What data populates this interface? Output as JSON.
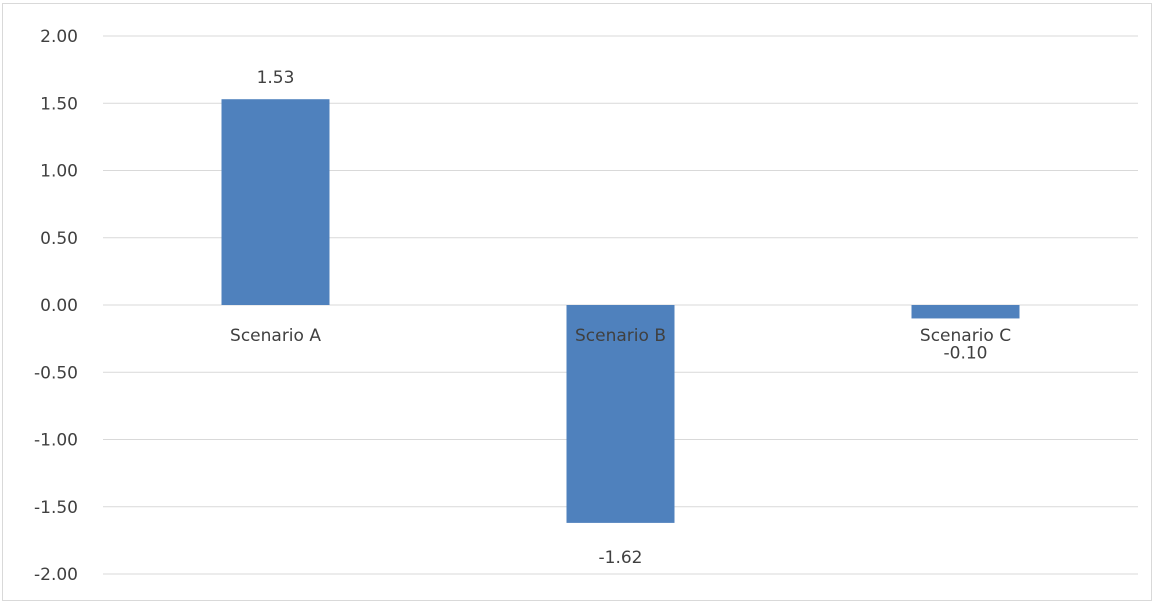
{
  "chart_data": {
    "type": "bar",
    "title": "",
    "xlabel": "",
    "ylabel": "",
    "categories": [
      "Scenario A",
      "Scenario B",
      "Scenario C"
    ],
    "values": [
      1.53,
      -1.62,
      -0.1
    ],
    "data_labels": [
      "1.53",
      "-1.62",
      "-0.10"
    ],
    "ylim": [
      -2.0,
      2.0
    ],
    "yticks": [
      2.0,
      1.5,
      1.0,
      0.5,
      0.0,
      -0.5,
      -1.0,
      -1.5,
      -2.0
    ],
    "ytick_labels": [
      "2.00",
      "1.50",
      "1.00",
      "0.50",
      "0.00",
      "-0.50",
      "-1.00",
      "-1.50",
      "-2.00"
    ],
    "grid": true,
    "legend": "none",
    "colors": {
      "bar": "#4f81bd",
      "grid": "#d9d9d9",
      "text": "#404040",
      "border": "#d9d9d9"
    }
  }
}
